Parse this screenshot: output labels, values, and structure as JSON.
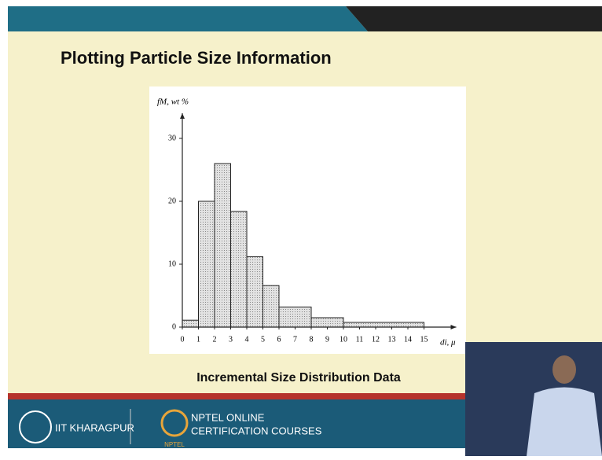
{
  "slide_title": "Plotting Particle Size Information",
  "caption": "Incremental Size Distribution Data",
  "footer": {
    "institute": "IIT KHARAGPUR",
    "program_line1": "NPTEL ONLINE",
    "program_line2": "CERTIFICATION COURSES",
    "logo_text": "NPTEL"
  },
  "chart_data": {
    "type": "histogram",
    "ylabel": "fM, wt %",
    "xlabel": "di, μ",
    "bins": [
      0,
      1,
      2,
      3,
      4,
      5,
      6,
      8,
      10,
      15
    ],
    "values": [
      1.1,
      20,
      26,
      18.4,
      11.2,
      6.6,
      3.2,
      1.5,
      0.75
    ],
    "color": "#d4d4d4",
    "xlim": [
      0,
      17
    ],
    "ylim": [
      0,
      34
    ],
    "xticks": [
      0,
      1,
      2,
      3,
      4,
      5,
      6,
      7,
      8,
      9,
      10,
      11,
      12,
      13,
      14,
      15
    ],
    "yticks": [
      0,
      10,
      20,
      30
    ]
  }
}
